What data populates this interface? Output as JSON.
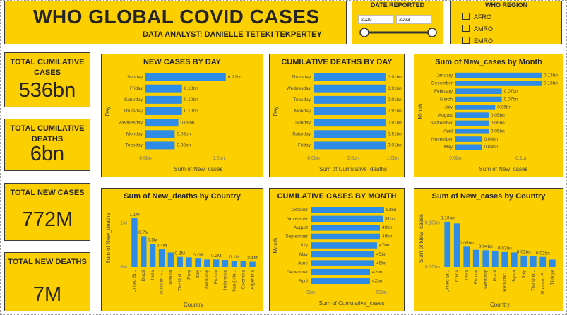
{
  "header": {
    "title": "WHO GLOBAL COVID CASES",
    "subtitle": "DATA ANALYST: DANIELLE TETEKI TEKPERTEY"
  },
  "date_slicer": {
    "title": "DATE REPORTED",
    "start": "2020",
    "end": "2023"
  },
  "region_slicer": {
    "title": "WHO REGION",
    "options": [
      "AFRO",
      "AMRO",
      "EMRO"
    ]
  },
  "kpis": [
    {
      "label": "TOTAL CUMILATIVE CASES",
      "value": "536bn"
    },
    {
      "label": "TOTAL CUMILATIVE DEATHS",
      "value": "6bn"
    },
    {
      "label": "TOTAL NEW CASES",
      "value": "772M"
    },
    {
      "label": "TOTAL NEW DEATHS",
      "value": "7M"
    }
  ],
  "chart_data": [
    {
      "type": "bar",
      "orientation": "horizontal",
      "title": "NEW CASES BY DAY",
      "x_label": "Sum of New_cases",
      "y_label": "Day",
      "color": "#2e8be6",
      "categories": [
        "Sunday",
        "Friday",
        "Saturday",
        "Thursday",
        "Wednesday",
        "Monday",
        "Tuesday"
      ],
      "values": [
        0.22,
        0.1,
        0.1,
        0.1,
        0.09,
        0.08,
        0.08
      ],
      "value_labels": [
        "0.22bn",
        "0.10bn",
        "0.10bn",
        "0.10bn",
        "0.09bn",
        "0.08bn",
        "0.08bn"
      ],
      "xlim": [
        0,
        0.29
      ],
      "xticks": [
        {
          "value": 0,
          "label": "0.0bn"
        },
        {
          "value": 0.2,
          "label": "0.2bn"
        }
      ]
    },
    {
      "type": "bar",
      "orientation": "horizontal",
      "title": "CUMILATIVE DEATHS BY DAY",
      "x_label": "Sum of Cumulative_deaths",
      "y_label": "Day",
      "color": "#2e8be6",
      "categories": [
        "Thursday",
        "Wednesday",
        "Tuesday",
        "Monday",
        "Sunday",
        "Saturday",
        "Friday"
      ],
      "values": [
        0.91,
        0.91,
        0.91,
        0.91,
        0.91,
        0.91,
        0.91
      ],
      "value_labels": [
        "0.91bn",
        "0.91bn",
        "0.91bn",
        "0.91bn",
        "0.91bn",
        "0.91bn",
        "0.91bn"
      ],
      "xlim": [
        0,
        1.0
      ],
      "xticks": [
        {
          "value": 0,
          "label": "0.0bn"
        },
        {
          "value": 0.5,
          "label": "0.5bn"
        },
        {
          "value": 1.0,
          "label": "1.0bn"
        }
      ]
    },
    {
      "type": "bar",
      "orientation": "horizontal",
      "title": "Sum of New_cases by Month",
      "x_label": "Sum of New_cases",
      "y_label": "Month",
      "color": "#2e8be6",
      "categories": [
        "January",
        "December",
        "February",
        "March",
        "July",
        "August",
        "September",
        "April",
        "November",
        "May"
      ],
      "values": [
        0.13,
        0.13,
        0.07,
        0.07,
        0.06,
        0.05,
        0.05,
        0.05,
        0.04,
        0.04
      ],
      "value_labels": [
        "0.13bn",
        "0.13bn",
        "0.07bn",
        "0.07bn",
        "0.06bn",
        "0.05bn",
        "0.05bn",
        "0.05bn",
        "0.04bn",
        "0.04bn"
      ],
      "xlim": [
        0,
        0.145
      ],
      "xticks": [
        {
          "value": 0,
          "label": "0.0bn"
        },
        {
          "value": 0.1,
          "label": "0.1bn"
        }
      ]
    },
    {
      "type": "bar",
      "orientation": "vertical",
      "title": "Sum of New_deaths by Country",
      "x_label": "Country",
      "y_label": "Sum of New_deaths",
      "color": "#2e8be6",
      "categories": [
        "United St...",
        "Brazil",
        "India",
        "Russian F...",
        "Mexico",
        "The Unit...",
        "Peru",
        "Italy",
        "Germany",
        "France",
        "Indonesia",
        "Iran (Isla...",
        "Colombia",
        "Argentina"
      ],
      "values": [
        1.11,
        0.7,
        0.53,
        0.4,
        0.33,
        0.23,
        0.22,
        0.19,
        0.17,
        0.17,
        0.16,
        0.14,
        0.13,
        0.12
      ],
      "value_labels": [
        "1.1M",
        "0.7M",
        "0.5M",
        "0.4M",
        null,
        "0.2M",
        null,
        "0.2M",
        null,
        "0.2M",
        null,
        "0.1M",
        null,
        "0.1M"
      ],
      "ylim": [
        0,
        1.3
      ],
      "yticks": [
        {
          "value": 0,
          "label": "0M"
        },
        {
          "value": 1,
          "label": "1M"
        }
      ]
    },
    {
      "type": "bar",
      "orientation": "horizontal",
      "title": "CUMILATIVE CASES BY MONTH",
      "x_label": "Sum of Cumulative_cases",
      "y_label": "Month",
      "color": "#2e8be6",
      "categories": [
        "October",
        "November",
        "August",
        "September",
        "July",
        "May",
        "June",
        "December",
        "April"
      ],
      "values": [
        52,
        51,
        49,
        49,
        47,
        45,
        45,
        42,
        42
      ],
      "value_labels": [
        "52bn",
        "51bn",
        "49bn",
        "49bn",
        "47bn",
        "45bn",
        "45bn",
        "42bn",
        "42bn"
      ],
      "xlim": [
        0,
        58
      ],
      "xticks": [
        {
          "value": 0,
          "label": "0bn"
        },
        {
          "value": 50,
          "label": "50bn"
        }
      ]
    },
    {
      "type": "bar",
      "orientation": "vertical",
      "title": "Sum of New_cases by Country",
      "x_label": "Country",
      "y_label": "Sum of New_cases",
      "color": "#2e8be6",
      "categories": [
        "United St...",
        "China",
        "India",
        "France",
        "Germany",
        "Brazil",
        "Republic...",
        "Japan",
        "Italy",
        "The Unit...",
        "Russian F...",
        "Türkiye"
      ],
      "values": [
        0.103,
        0.099,
        0.046,
        0.039,
        0.038,
        0.037,
        0.034,
        0.033,
        0.026,
        0.025,
        0.023,
        0.017
      ],
      "value_labels": [
        "0.10bn",
        null,
        "0.05bn",
        null,
        "0.04bn",
        null,
        "0.03bn",
        null,
        "0.03bn",
        null,
        "0.02bn",
        null
      ],
      "ylim": [
        0,
        0.13
      ],
      "yticks": [
        {
          "value": 0,
          "label": "0.00bn"
        },
        {
          "value": 0.1,
          "label": "0.10bn"
        }
      ]
    }
  ]
}
